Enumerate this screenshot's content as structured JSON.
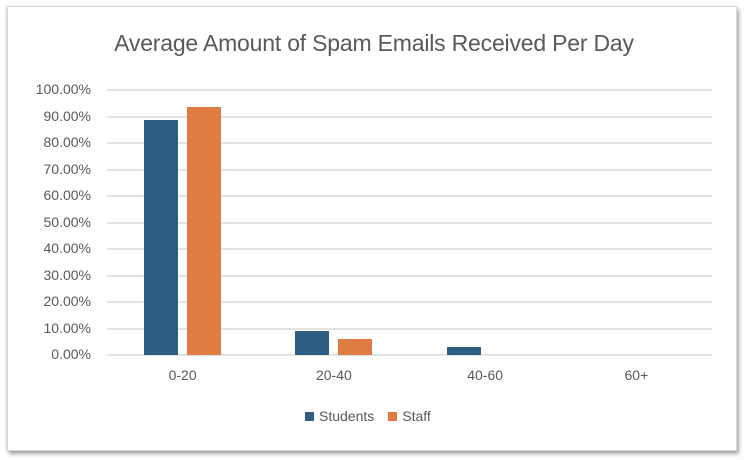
{
  "chart_data": {
    "type": "bar",
    "title": "Average Amount of Spam Emails Received Per Day",
    "xlabel": "",
    "ylabel": "",
    "categories": [
      "0-20",
      "20-40",
      "40-60",
      "60+"
    ],
    "series": [
      {
        "name": "Students",
        "color": "#2E5F82",
        "values": [
          88.5,
          9.0,
          3.0,
          0.0
        ]
      },
      {
        "name": "Staff",
        "color": "#E07B41",
        "values": [
          93.5,
          6.0,
          0.0,
          0.0
        ]
      }
    ],
    "ylim": [
      0,
      100
    ],
    "yticks": [
      "0.00%",
      "10.00%",
      "20.00%",
      "30.00%",
      "40.00%",
      "50.00%",
      "60.00%",
      "70.00%",
      "80.00%",
      "90.00%",
      "100.00%"
    ],
    "grid": true,
    "legend_position": "bottom"
  }
}
